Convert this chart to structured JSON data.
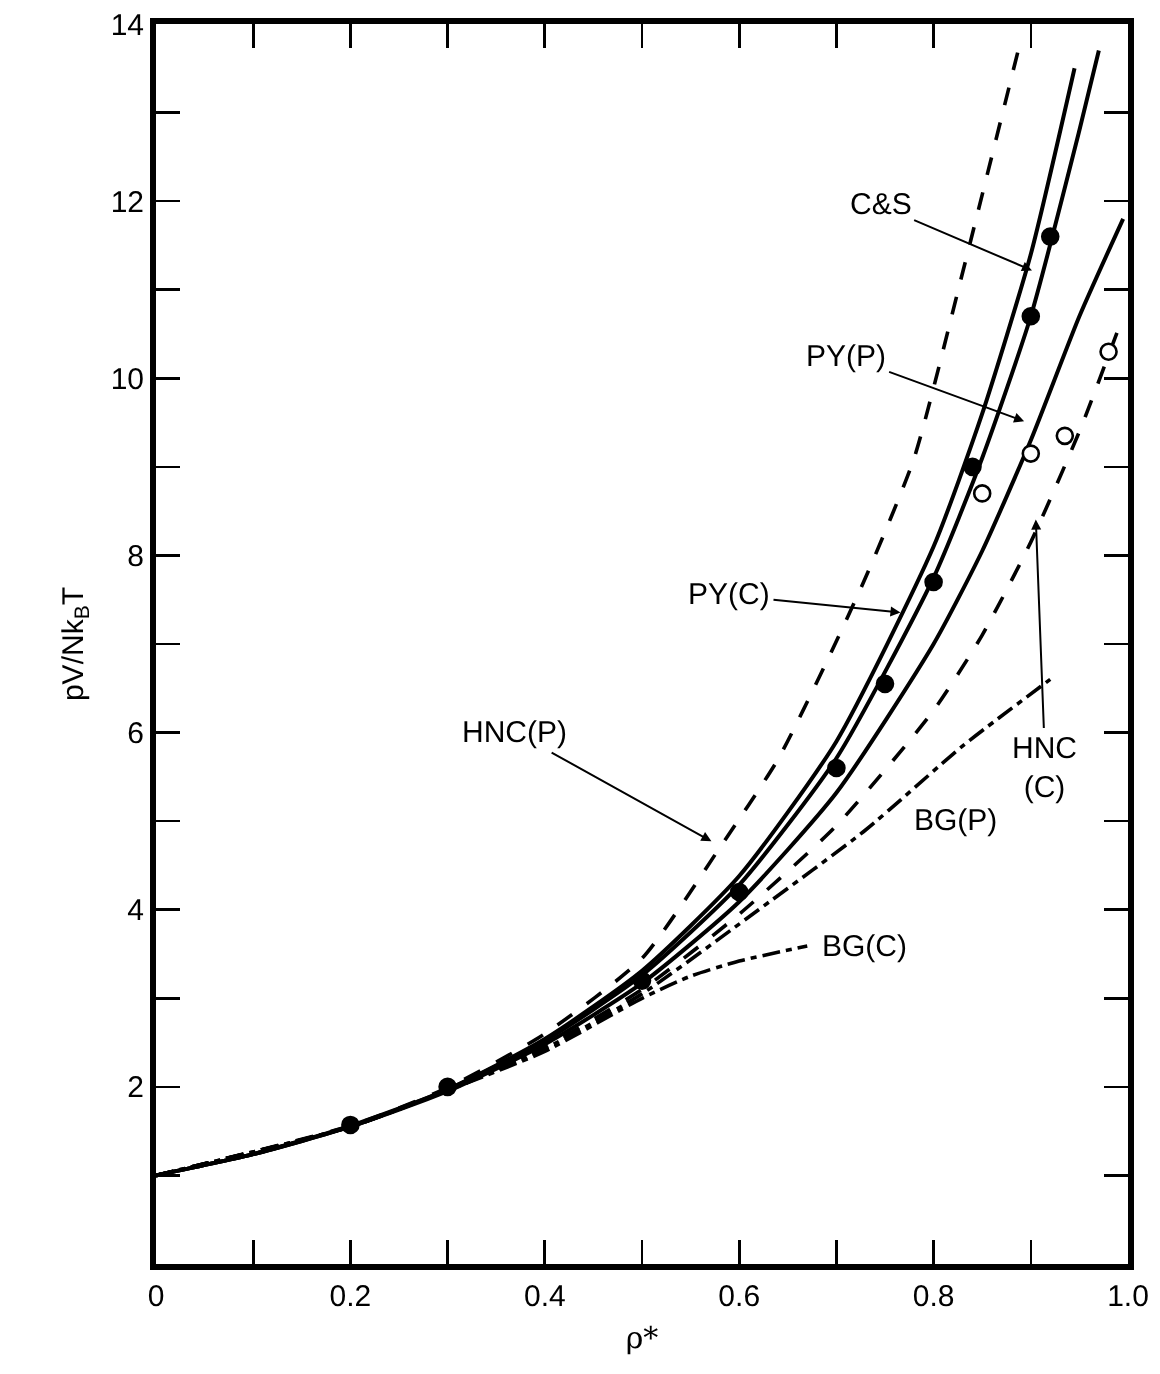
{
  "chart_data": {
    "type": "line",
    "xlabel": "ρ*",
    "ylabel": "pV/Nk$_{B}$T",
    "xlim": [
      0,
      1.0
    ],
    "ylim": [
      0,
      14
    ],
    "xticks": [
      {
        "value": 0,
        "label": "0"
      },
      {
        "value": 0.1,
        "label": null
      },
      0.2,
      {
        "value": 0.3,
        "label": null
      },
      0.4,
      {
        "value": 0.5,
        "label": null
      },
      0.6,
      {
        "value": 0.7,
        "label": null
      },
      0.8,
      {
        "value": 0.9,
        "label": null
      },
      {
        "value": 1.0,
        "label": "1.0"
      }
    ],
    "yticks": [
      {
        "value": 0,
        "label": null
      },
      {
        "value": 1,
        "label": null
      },
      2,
      {
        "value": 3,
        "label": null
      },
      4,
      {
        "value": 5,
        "label": null
      },
      6,
      {
        "value": 7,
        "label": null
      },
      8,
      {
        "value": 9,
        "label": null
      },
      10,
      {
        "value": 11,
        "label": null
      },
      12,
      {
        "value": 13,
        "label": null
      },
      14
    ],
    "grid": false,
    "annotations": [
      {
        "text": "HNC(P)",
        "x": 0.575,
        "y": 4.75
      },
      {
        "text": "PY(C)",
        "x": 0.77,
        "y": 7.35
      },
      {
        "text": "C&S",
        "x": 0.905,
        "y": 11.2
      },
      {
        "text": "PY(P)",
        "x": 0.897,
        "y": 9.5
      },
      {
        "text": "HNC (C)",
        "x": 0.905,
        "y": 8.45
      },
      {
        "text": "BG(P)",
        "x": 0.77,
        "y": 5.4
      },
      {
        "text": "BG(C)",
        "x": 0.67,
        "y": 3.59
      }
    ],
    "series": [
      {
        "color": "#000000",
        "line_style": "dashed",
        "marker": "none",
        "x": [
          0,
          0.2,
          0.3,
          0.4,
          0.5,
          0.58,
          0.64,
          0.69,
          0.73,
          0.78,
          0.83,
          0.887
        ],
        "values": [
          1,
          1.56,
          1.99,
          2.6,
          3.45,
          4.7,
          5.7,
          6.8,
          7.75,
          9.1,
          11.2,
          13.7
        ]
      },
      {
        "color": "#000000",
        "line_style": "solid",
        "marker": "none",
        "x": [
          0,
          0.1,
          0.2,
          0.3,
          0.4,
          0.5,
          0.6,
          0.7,
          0.8,
          0.85,
          0.9,
          0.945
        ],
        "values": [
          1,
          1.24,
          1.56,
          1.97,
          2.54,
          3.31,
          4.38,
          5.9,
          8.1,
          9.6,
          11.4,
          13.5
        ]
      },
      {
        "color": "#000000",
        "line_style": "solid",
        "marker": "none",
        "x": [
          0,
          0.1,
          0.2,
          0.3,
          0.4,
          0.5,
          0.6,
          0.7,
          0.8,
          0.85,
          0.9,
          0.95,
          0.97
        ],
        "values": [
          1,
          1.24,
          1.55,
          1.97,
          2.52,
          3.26,
          4.28,
          5.71,
          7.75,
          9.1,
          10.7,
          12.8,
          13.7
        ]
      },
      {
        "color": "#000000",
        "line_style": "solid",
        "marker": "none",
        "x": [
          0,
          0.1,
          0.2,
          0.3,
          0.4,
          0.5,
          0.6,
          0.7,
          0.8,
          0.85,
          0.9,
          0.95,
          0.995
        ],
        "values": [
          1,
          1.24,
          1.55,
          1.95,
          2.48,
          3.17,
          4.09,
          5.32,
          7.0,
          8.05,
          9.3,
          10.7,
          11.8
        ]
      },
      {
        "color": "#000000",
        "line_style": "dashed",
        "marker": "none",
        "x": [
          0,
          0.2,
          0.3,
          0.4,
          0.5,
          0.6,
          0.7,
          0.8,
          0.85,
          0.9,
          0.95,
          0.995
        ],
        "values": [
          1,
          1.55,
          1.96,
          2.45,
          3.1,
          3.95,
          4.95,
          6.25,
          7.1,
          8.15,
          9.4,
          10.7
        ]
      },
      {
        "color": "#000000",
        "line_style": "dashdot",
        "marker": "none",
        "x": [
          0,
          0.2,
          0.3,
          0.4,
          0.5,
          0.62,
          0.73,
          0.83,
          0.92
        ],
        "values": [
          1,
          1.55,
          1.96,
          2.43,
          3.05,
          4.0,
          4.9,
          5.85,
          6.6
        ]
      },
      {
        "color": "#000000",
        "line_style": "dashdot",
        "marker": "none",
        "x": [
          0,
          0.2,
          0.3,
          0.4,
          0.5,
          0.55,
          0.6,
          0.67
        ],
        "values": [
          1,
          1.55,
          1.96,
          2.4,
          3.0,
          3.25,
          3.42,
          3.59
        ]
      },
      {
        "type": "scatter",
        "color": "#000000",
        "marker": "circle",
        "x": [
          0.2,
          0.3,
          0.5,
          0.6,
          0.7,
          0.75,
          0.8,
          0.84,
          0.9,
          0.92
        ],
        "values": [
          1.57,
          2.0,
          3.2,
          4.2,
          5.6,
          6.55,
          7.7,
          9.0,
          10.7,
          11.6
        ]
      },
      {
        "type": "scatter",
        "color": "#ffffff",
        "marker": "circle",
        "x": [
          0.85,
          0.9,
          0.935,
          0.98
        ],
        "values": [
          8.7,
          9.15,
          9.35,
          10.3
        ]
      }
    ]
  }
}
